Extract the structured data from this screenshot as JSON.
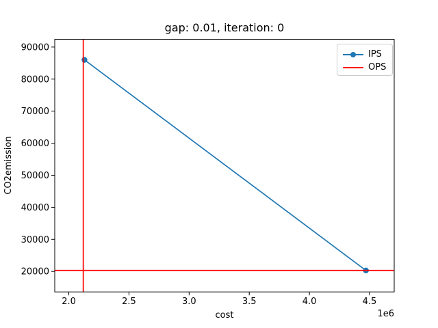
{
  "figure": {
    "background": "#ffffff",
    "title": "gap: 0.01, iteration: 0"
  },
  "chart_data": {
    "type": "line",
    "title": "gap: 0.01, iteration: 0",
    "xlabel": "cost",
    "ylabel": "CO2emission",
    "x_offset_text": "1e6",
    "xlim": [
      1883000,
      4705000
    ],
    "ylim": [
      13600,
      92400
    ],
    "grid": false,
    "axes_color": "#000000",
    "xticks": {
      "values": [
        2000000,
        2500000,
        3000000,
        3500000,
        4000000,
        4500000
      ],
      "labels": [
        "2.0",
        "2.5",
        "3.0",
        "3.5",
        "4.0",
        "4.5"
      ]
    },
    "yticks": {
      "values": [
        20000,
        30000,
        40000,
        50000,
        60000,
        70000,
        80000,
        90000
      ],
      "labels": [
        "20000",
        "30000",
        "40000",
        "50000",
        "60000",
        "70000",
        "80000",
        "90000"
      ]
    },
    "series": [
      {
        "name": "IPS",
        "style": "line-with-circle-markers",
        "color": "#1f77b4",
        "points": [
          [
            2130000,
            86000
          ],
          [
            4470000,
            20300
          ]
        ]
      },
      {
        "name": "OPS",
        "style": "reference-lines",
        "color": "#ff0000",
        "vline_x": 2120000,
        "hline_y": 20300
      }
    ],
    "legend": {
      "position": "upper right",
      "entries": [
        {
          "label": "IPS",
          "color": "#1f77b4",
          "marker": "circle"
        },
        {
          "label": "OPS",
          "color": "#ff0000",
          "marker": "none"
        }
      ]
    }
  }
}
